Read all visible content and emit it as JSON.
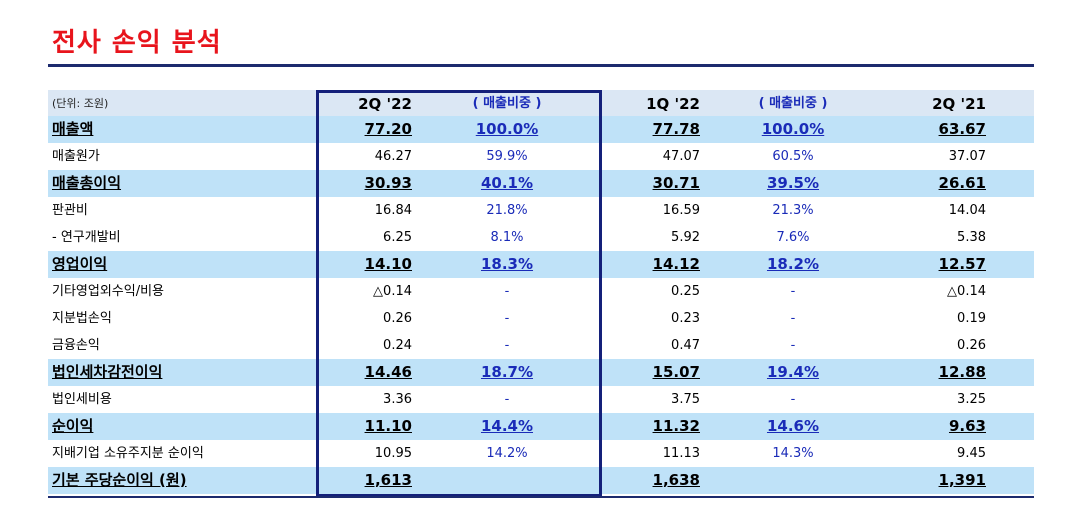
{
  "title": "전사 손익 분석",
  "unit": "(단위: 조원)",
  "columns": [
    "2Q '22",
    "( 매출비중 )",
    "1Q '22",
    "( 매출비중 )",
    "2Q '21"
  ],
  "rows": [
    {
      "label": "매출액",
      "bold": true,
      "v": [
        "77.20",
        "100.0%",
        "77.78",
        "100.0%",
        "63.67"
      ]
    },
    {
      "label": "매출원가",
      "bold": false,
      "v": [
        "46.27",
        "59.9%",
        "47.07",
        "60.5%",
        "37.07"
      ]
    },
    {
      "label": "매출총이익",
      "bold": true,
      "v": [
        "30.93",
        "40.1%",
        "30.71",
        "39.5%",
        "26.61"
      ]
    },
    {
      "label": "판관비",
      "bold": false,
      "v": [
        "16.84",
        "21.8%",
        "16.59",
        "21.3%",
        "14.04"
      ]
    },
    {
      "label": " - 연구개발비",
      "bold": false,
      "v": [
        "6.25",
        "8.1%",
        "5.92",
        "7.6%",
        "5.38"
      ]
    },
    {
      "label": "영업이익",
      "bold": true,
      "v": [
        "14.10",
        "18.3%",
        "14.12",
        "18.2%",
        "12.57"
      ]
    },
    {
      "label": "기타영업외수익/비용",
      "bold": false,
      "v": [
        "△0.14",
        "-",
        "0.25",
        "-",
        "△0.14"
      ]
    },
    {
      "label": "지분법손익",
      "bold": false,
      "v": [
        "0.26",
        "-",
        "0.23",
        "-",
        "0.19"
      ]
    },
    {
      "label": "금융손익",
      "bold": false,
      "v": [
        "0.24",
        "-",
        "0.47",
        "-",
        "0.26"
      ]
    },
    {
      "label": "법인세차감전이익",
      "bold": true,
      "v": [
        "14.46",
        "18.7%",
        "15.07",
        "19.4%",
        "12.88"
      ]
    },
    {
      "label": "법인세비용",
      "bold": false,
      "v": [
        "3.36",
        "-",
        "3.75",
        "-",
        "3.25"
      ]
    },
    {
      "label": "순이익",
      "bold": true,
      "v": [
        "11.10",
        "14.4%",
        "11.32",
        "14.6%",
        "9.63"
      ]
    },
    {
      "label": "지배기업 소유주지분 순이익",
      "bold": false,
      "v": [
        "10.95",
        "14.2%",
        "11.13",
        "14.3%",
        "9.45"
      ]
    },
    {
      "label": "기본 주당순이익 (원)",
      "bold": true,
      "v": [
        "1,613",
        "",
        "1,638",
        "",
        "1,391"
      ]
    }
  ],
  "colors": {
    "title": "#e8141c",
    "rule": "#1c2a6e",
    "band": "#bfe2f8",
    "header_band": "#dbe7f4",
    "percent": "#1a2bb8",
    "box": "#14207a"
  }
}
